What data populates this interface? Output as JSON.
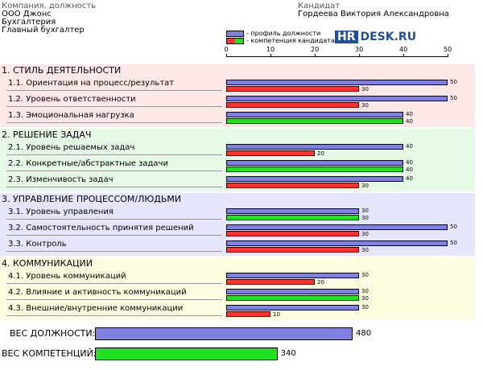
{
  "header": {
    "company_label": "Компания, должность",
    "company_lines": [
      "ООО Джонс",
      "Бухгалтерия",
      "Главный бухгалтер"
    ],
    "candidate_label": "Кандидат",
    "candidate_name": "Гордеева Виктория Александровна"
  },
  "legend": {
    "profile": "- профиль должности",
    "competence": "- компетенция кандидата"
  },
  "logo": {
    "part1": "HR",
    "part2": "DESK.RU"
  },
  "colors": {
    "profile": "#8080e0",
    "low": "#ff3030",
    "match": "#20e020",
    "sec_style": "#fde8e8",
    "sec_tasks": "#e6f8e6",
    "sec_manage": "#e6e6fa",
    "sec_comm": "#fdfbe0"
  },
  "chart_data": {
    "type": "bar",
    "x_ticks": [
      "0",
      "10",
      "20",
      "30",
      "40",
      "50"
    ],
    "xlim": [
      0,
      50
    ],
    "sections": [
      {
        "title": "1. СТИЛЬ ДЕЯТЕЛЬНОСТИ",
        "items": [
          {
            "label": "1.1. Ориентация на процесс/результат",
            "profile": 50,
            "profile_label": "50",
            "candidate": 30,
            "candidate_label": "30"
          },
          {
            "label": "1.2. Уровень ответственности",
            "profile": 50,
            "profile_label": "50",
            "candidate": 30,
            "candidate_label": "30"
          },
          {
            "label": "1.3. Эмоциональная нагрузка",
            "profile": 40,
            "profile_label": "40",
            "candidate": 40,
            "candidate_label": "40"
          }
        ]
      },
      {
        "title": "2. РЕШЕНИЕ ЗАДАЧ",
        "items": [
          {
            "label": "2.1. Уровень решаемых задач",
            "profile": 40,
            "profile_label": "40",
            "candidate": 20,
            "candidate_label": "20"
          },
          {
            "label": "2.2. Конкретные/абстрактные задачи",
            "profile": 40,
            "profile_label": "40",
            "candidate": 40,
            "candidate_label": "40"
          },
          {
            "label": "2.3. Изменчивость задач",
            "profile": 40,
            "profile_label": "40",
            "candidate": 30,
            "candidate_label": "30"
          }
        ]
      },
      {
        "title": "3. УПРАВЛЕНИЕ ПРОЦЕССОМ/ЛЮДЬМИ",
        "items": [
          {
            "label": "3.1. Уровень управления",
            "profile": 30,
            "profile_label": "30",
            "candidate": 30,
            "candidate_label": "30"
          },
          {
            "label": "3.2. Самостоятельность принятия решений",
            "profile": 50,
            "profile_label": "50",
            "candidate": 30,
            "candidate_label": "30"
          },
          {
            "label": "3.3. Контроль",
            "profile": 50,
            "profile_label": "50",
            "candidate": 30,
            "candidate_label": "30"
          }
        ]
      },
      {
        "title": "4. КОММУНИКАЦИИ",
        "items": [
          {
            "label": "4.1. Уровень коммуникаций",
            "profile": 30,
            "profile_label": "30",
            "candidate": 20,
            "candidate_label": "20"
          },
          {
            "label": "4.2. Влияние и активность коммуникаций",
            "profile": 30,
            "profile_label": "30",
            "candidate": 30,
            "candidate_label": "30"
          },
          {
            "label": "4.3. Внешние/внутренние коммуникации",
            "profile": 30,
            "profile_label": "30",
            "candidate": 10,
            "candidate_label": "10"
          }
        ]
      }
    ],
    "totals": [
      {
        "label": "ВЕС ДОЛЖНОСТИ:",
        "value": 480,
        "value_label": "480",
        "series": "profile"
      },
      {
        "label": "ВЕС КОМПЕТЕНЦИЙ:",
        "value": 340,
        "value_label": "340",
        "series": "match"
      }
    ]
  }
}
